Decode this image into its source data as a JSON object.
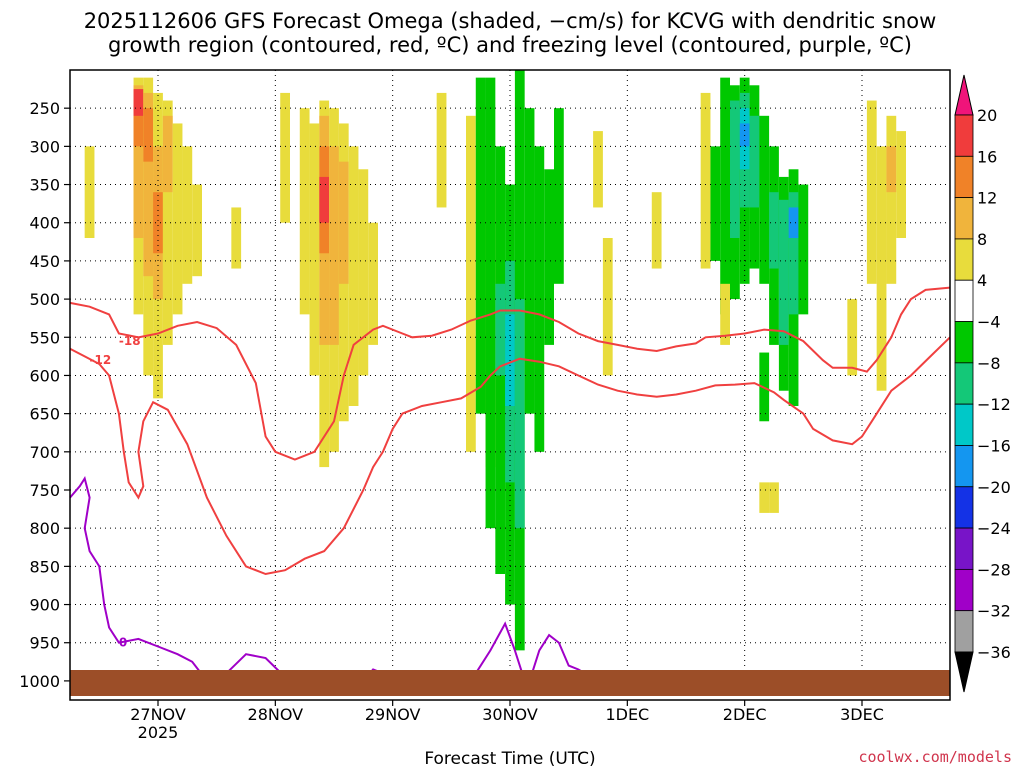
{
  "title_line1": "2025112606 GFS Forecast Omega (shaded, −cm/s) for KCVG with dendritic snow",
  "title_line2": "growth region (contoured, red, ºC) and freezing level (contoured, purple, ºC)",
  "credit": "coolwx.com/models",
  "chart_data": {
    "type": "heatmap",
    "xlabel": "Forecast Time (UTC)",
    "ylabel": "Pressure (hPa)",
    "x_ticks": [
      {
        "label": "27NOV",
        "sub": "2025",
        "hour": 18
      },
      {
        "label": "28NOV",
        "sub": "",
        "hour": 42
      },
      {
        "label": "29NOV",
        "sub": "",
        "hour": 66
      },
      {
        "label": "30NOV",
        "sub": "",
        "hour": 90
      },
      {
        "label": "1DEC",
        "sub": "",
        "hour": 114
      },
      {
        "label": "2DEC",
        "sub": "",
        "hour": 138
      },
      {
        "label": "3DEC",
        "sub": "",
        "hour": 162
      }
    ],
    "x_range_hours": [
      0,
      180
    ],
    "y_ticks": [
      250,
      300,
      350,
      400,
      450,
      500,
      550,
      600,
      650,
      700,
      750,
      800,
      850,
      900,
      950,
      1000
    ],
    "y_range": [
      1025,
      200
    ],
    "colorbar": {
      "labels": [
        "20",
        "16",
        "12",
        "8",
        "4",
        "−4",
        "−8",
        "−12",
        "−16",
        "−20",
        "−24",
        "−28",
        "−32",
        "−36"
      ],
      "colors": [
        "#f0147a",
        "#f03c3c",
        "#f08228",
        "#f0b43c",
        "#e8dc3c",
        "#ffffff",
        "#00c800",
        "#14c878",
        "#00c8c8",
        "#1496f0",
        "#1432e6",
        "#7814c8",
        "#a000c8",
        "#a0a0a0",
        "#000000"
      ]
    },
    "omega_cells": [
      {
        "h": 14,
        "p0": 210,
        "p1": 520,
        "v": 6
      },
      {
        "h": 14,
        "p0": 220,
        "p1": 420,
        "v": 10
      },
      {
        "h": 14,
        "p0": 240,
        "p1": 300,
        "v": 14
      },
      {
        "h": 14,
        "p0": 225,
        "p1": 260,
        "v": 18
      },
      {
        "h": 16,
        "p0": 210,
        "p1": 600,
        "v": 6
      },
      {
        "h": 16,
        "p0": 230,
        "p1": 470,
        "v": 10
      },
      {
        "h": 16,
        "p0": 250,
        "p1": 320,
        "v": 14
      },
      {
        "h": 18,
        "p0": 230,
        "p1": 630,
        "v": 6
      },
      {
        "h": 18,
        "p0": 300,
        "p1": 500,
        "v": 10
      },
      {
        "h": 18,
        "p0": 360,
        "p1": 440,
        "v": 14
      },
      {
        "h": 20,
        "p0": 240,
        "p1": 560,
        "v": 6
      },
      {
        "h": 20,
        "p0": 260,
        "p1": 360,
        "v": 10
      },
      {
        "h": 22,
        "p0": 270,
        "p1": 520,
        "v": 6
      },
      {
        "h": 24,
        "p0": 300,
        "p1": 480,
        "v": 6
      },
      {
        "h": 4,
        "p0": 300,
        "p1": 420,
        "v": 6
      },
      {
        "h": 26,
        "p0": 350,
        "p1": 470,
        "v": 6
      },
      {
        "h": 34,
        "p0": 380,
        "p1": 460,
        "v": 6
      },
      {
        "h": 44,
        "p0": 230,
        "p1": 400,
        "v": 6
      },
      {
        "h": 48,
        "p0": 250,
        "p1": 520,
        "v": 6
      },
      {
        "h": 50,
        "p0": 270,
        "p1": 600,
        "v": 6
      },
      {
        "h": 52,
        "p0": 240,
        "p1": 720,
        "v": 6
      },
      {
        "h": 52,
        "p0": 260,
        "p1": 560,
        "v": 10
      },
      {
        "h": 52,
        "p0": 300,
        "p1": 440,
        "v": 14
      },
      {
        "h": 52,
        "p0": 340,
        "p1": 400,
        "v": 18
      },
      {
        "h": 54,
        "p0": 250,
        "p1": 700,
        "v": 6
      },
      {
        "h": 54,
        "p0": 300,
        "p1": 560,
        "v": 10
      },
      {
        "h": 56,
        "p0": 270,
        "p1": 660,
        "v": 6
      },
      {
        "h": 56,
        "p0": 320,
        "p1": 480,
        "v": 10
      },
      {
        "h": 58,
        "p0": 300,
        "p1": 640,
        "v": 6
      },
      {
        "h": 60,
        "p0": 330,
        "p1": 600,
        "v": 6
      },
      {
        "h": 62,
        "p0": 400,
        "p1": 560,
        "v": 6
      },
      {
        "h": 76,
        "p0": 230,
        "p1": 380,
        "v": 6
      },
      {
        "h": 82,
        "p0": 260,
        "p1": 700,
        "v": 6
      },
      {
        "h": 86,
        "p0": 350,
        "p1": 720,
        "v": 6
      },
      {
        "h": 84,
        "p0": 210,
        "p1": 650,
        "v": -6
      },
      {
        "h": 86,
        "p0": 210,
        "p1": 800,
        "v": -6
      },
      {
        "h": 88,
        "p0": 300,
        "p1": 860,
        "v": -6
      },
      {
        "h": 88,
        "p0": 480,
        "p1": 600,
        "v": -10
      },
      {
        "h": 90,
        "p0": 350,
        "p1": 900,
        "v": -6
      },
      {
        "h": 90,
        "p0": 450,
        "p1": 740,
        "v": -10
      },
      {
        "h": 90,
        "p0": 520,
        "p1": 640,
        "v": -14
      },
      {
        "h": 92,
        "p0": 200,
        "p1": 960,
        "v": -6
      },
      {
        "h": 92,
        "p0": 500,
        "p1": 800,
        "v": -10
      },
      {
        "h": 94,
        "p0": 250,
        "p1": 650,
        "v": -6
      },
      {
        "h": 96,
        "p0": 300,
        "p1": 700,
        "v": -6
      },
      {
        "h": 98,
        "p0": 330,
        "p1": 560,
        "v": -6
      },
      {
        "h": 100,
        "p0": 250,
        "p1": 480,
        "v": -6
      },
      {
        "h": 108,
        "p0": 280,
        "p1": 380,
        "v": 6
      },
      {
        "h": 110,
        "p0": 420,
        "p1": 600,
        "v": 6
      },
      {
        "h": 120,
        "p0": 360,
        "p1": 460,
        "v": 6
      },
      {
        "h": 130,
        "p0": 230,
        "p1": 460,
        "v": 6
      },
      {
        "h": 132,
        "p0": 300,
        "p1": 450,
        "v": -6
      },
      {
        "h": 134,
        "p0": 210,
        "p1": 520,
        "v": -6
      },
      {
        "h": 136,
        "p0": 220,
        "p1": 500,
        "v": -6
      },
      {
        "h": 136,
        "p0": 240,
        "p1": 420,
        "v": -10
      },
      {
        "h": 138,
        "p0": 210,
        "p1": 480,
        "v": -6
      },
      {
        "h": 138,
        "p0": 230,
        "p1": 380,
        "v": -10
      },
      {
        "h": 138,
        "p0": 250,
        "p1": 330,
        "v": -14
      },
      {
        "h": 138,
        "p0": 270,
        "p1": 300,
        "v": -18
      },
      {
        "h": 140,
        "p0": 220,
        "p1": 460,
        "v": -6
      },
      {
        "h": 140,
        "p0": 260,
        "p1": 380,
        "v": -10
      },
      {
        "h": 142,
        "p0": 260,
        "p1": 480,
        "v": -6
      },
      {
        "h": 144,
        "p0": 300,
        "p1": 560,
        "v": -6
      },
      {
        "h": 144,
        "p0": 360,
        "p1": 460,
        "v": -10
      },
      {
        "h": 146,
        "p0": 340,
        "p1": 620,
        "v": -6
      },
      {
        "h": 146,
        "p0": 370,
        "p1": 560,
        "v": -10
      },
      {
        "h": 148,
        "p0": 330,
        "p1": 640,
        "v": -6
      },
      {
        "h": 148,
        "p0": 360,
        "p1": 520,
        "v": -10
      },
      {
        "h": 148,
        "p0": 380,
        "p1": 420,
        "v": -18
      },
      {
        "h": 150,
        "p0": 350,
        "p1": 520,
        "v": -6
      },
      {
        "h": 142,
        "p0": 570,
        "p1": 660,
        "v": -6
      },
      {
        "h": 142,
        "p0": 740,
        "p1": 780,
        "v": 6
      },
      {
        "h": 144,
        "p0": 740,
        "p1": 780,
        "v": 6
      },
      {
        "h": 134,
        "p0": 480,
        "p1": 560,
        "v": 6
      },
      {
        "h": 160,
        "p0": 500,
        "p1": 600,
        "v": 6
      },
      {
        "h": 164,
        "p0": 240,
        "p1": 480,
        "v": 6
      },
      {
        "h": 166,
        "p0": 300,
        "p1": 620,
        "v": 6
      },
      {
        "h": 168,
        "p0": 260,
        "p1": 480,
        "v": 6
      },
      {
        "h": 168,
        "p0": 300,
        "p1": 360,
        "v": 10
      },
      {
        "h": 170,
        "p0": 280,
        "p1": 420,
        "v": 6
      }
    ],
    "contours": [
      {
        "name": "dgz-bound-upper",
        "label": "-18",
        "color": "#f04040",
        "label_at": [
          10,
          555
        ],
        "points": [
          [
            0,
            505
          ],
          [
            4,
            510
          ],
          [
            8,
            520
          ],
          [
            10,
            545
          ],
          [
            14,
            550
          ],
          [
            18,
            545
          ],
          [
            22,
            535
          ],
          [
            26,
            530
          ],
          [
            30,
            538
          ],
          [
            34,
            560
          ],
          [
            38,
            610
          ],
          [
            40,
            680
          ],
          [
            42,
            700
          ],
          [
            46,
            710
          ],
          [
            50,
            700
          ],
          [
            54,
            660
          ],
          [
            56,
            600
          ],
          [
            58,
            560
          ],
          [
            62,
            540
          ],
          [
            64,
            535
          ],
          [
            68,
            545
          ],
          [
            70,
            550
          ],
          [
            74,
            548
          ],
          [
            78,
            540
          ],
          [
            82,
            528
          ],
          [
            86,
            520
          ],
          [
            88,
            515
          ],
          [
            92,
            515
          ],
          [
            96,
            520
          ],
          [
            100,
            530
          ],
          [
            104,
            545
          ],
          [
            108,
            555
          ],
          [
            112,
            560
          ],
          [
            116,
            565
          ],
          [
            120,
            568
          ],
          [
            124,
            562
          ],
          [
            128,
            558
          ],
          [
            130,
            550
          ],
          [
            134,
            548
          ],
          [
            138,
            545
          ],
          [
            142,
            540
          ],
          [
            146,
            542
          ],
          [
            150,
            555
          ],
          [
            154,
            580
          ],
          [
            156,
            590
          ],
          [
            160,
            590
          ],
          [
            163,
            595
          ],
          [
            165,
            580
          ],
          [
            168,
            550
          ],
          [
            170,
            520
          ],
          [
            172,
            500
          ],
          [
            175,
            488
          ],
          [
            180,
            485
          ]
        ]
      },
      {
        "name": "dgz-bound-lower",
        "label": "-12",
        "color": "#f04040",
        "label_at": [
          4,
          580
        ],
        "points": [
          [
            0,
            565
          ],
          [
            3,
            575
          ],
          [
            6,
            585
          ],
          [
            8,
            600
          ],
          [
            10,
            650
          ],
          [
            11,
            700
          ],
          [
            12,
            740
          ],
          [
            14,
            760
          ],
          [
            15,
            745
          ],
          [
            14,
            700
          ],
          [
            15,
            660
          ],
          [
            17,
            635
          ],
          [
            20,
            645
          ],
          [
            24,
            690
          ],
          [
            28,
            760
          ],
          [
            32,
            810
          ],
          [
            36,
            850
          ],
          [
            40,
            860
          ],
          [
            44,
            855
          ],
          [
            48,
            840
          ],
          [
            52,
            830
          ],
          [
            56,
            800
          ],
          [
            60,
            750
          ],
          [
            62,
            720
          ],
          [
            64,
            700
          ],
          [
            66,
            670
          ],
          [
            68,
            650
          ],
          [
            72,
            640
          ],
          [
            76,
            635
          ],
          [
            80,
            630
          ],
          [
            84,
            615
          ],
          [
            86,
            600
          ],
          [
            88,
            588
          ],
          [
            92,
            578
          ],
          [
            96,
            582
          ],
          [
            100,
            588
          ],
          [
            104,
            600
          ],
          [
            108,
            612
          ],
          [
            112,
            620
          ],
          [
            116,
            625
          ],
          [
            120,
            628
          ],
          [
            124,
            625
          ],
          [
            128,
            620
          ],
          [
            132,
            613
          ],
          [
            136,
            612
          ],
          [
            140,
            610
          ],
          [
            144,
            622
          ],
          [
            146,
            632
          ],
          [
            150,
            650
          ],
          [
            152,
            670
          ],
          [
            156,
            685
          ],
          [
            160,
            690
          ],
          [
            162,
            680
          ],
          [
            164,
            660
          ],
          [
            168,
            620
          ],
          [
            172,
            600
          ],
          [
            176,
            575
          ],
          [
            180,
            550
          ]
        ]
      },
      {
        "name": "freezing-level",
        "label": "0",
        "color": "#a000c8",
        "label_at": [
          10,
          950
        ],
        "points": [
          [
            0,
            760
          ],
          [
            2,
            745
          ],
          [
            3,
            735
          ],
          [
            4,
            760
          ],
          [
            3,
            800
          ],
          [
            4,
            830
          ],
          [
            6,
            850
          ],
          [
            7,
            900
          ],
          [
            8,
            930
          ],
          [
            10,
            950
          ],
          [
            14,
            945
          ],
          [
            18,
            955
          ],
          [
            22,
            965
          ],
          [
            25,
            975
          ],
          [
            28,
            1000
          ],
          [
            32,
            990
          ],
          [
            36,
            965
          ],
          [
            40,
            970
          ],
          [
            44,
            995
          ]
        ]
      },
      {
        "name": "freezing-level-2",
        "label": "",
        "color": "#a000c8",
        "label_at": [
          0,
          0
        ],
        "points": [
          [
            60,
            1000
          ],
          [
            62,
            985
          ],
          [
            64,
            990
          ],
          [
            66,
            1000
          ]
        ]
      },
      {
        "name": "freezing-level-3",
        "label": "",
        "color": "#a000c8",
        "label_at": [
          0,
          0
        ],
        "points": [
          [
            82,
            1000
          ],
          [
            86,
            960
          ],
          [
            89,
            925
          ],
          [
            91,
            960
          ],
          [
            93,
            1000
          ]
        ]
      },
      {
        "name": "freezing-level-4",
        "label": "",
        "color": "#a000c8",
        "label_at": [
          0,
          0
        ],
        "points": [
          [
            94,
            1000
          ],
          [
            96,
            960
          ],
          [
            98,
            940
          ],
          [
            100,
            950
          ],
          [
            102,
            980
          ],
          [
            104,
            985
          ],
          [
            108,
            1000
          ]
        ]
      }
    ]
  }
}
